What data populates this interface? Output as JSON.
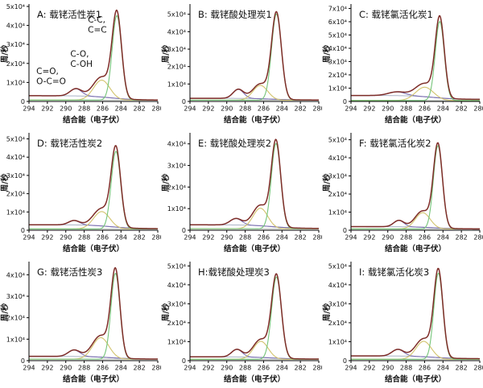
{
  "figure_title": "XPS C1s spectra grid",
  "chart_data": {
    "type": "line",
    "subtype": "xps-fitted-spectra",
    "xlabel": "结合能（电子伏）",
    "ylabel": "周/秒",
    "x_range": [
      294,
      280
    ],
    "x_ticks": [
      "294",
      "292",
      "290",
      "288",
      "286",
      "284",
      "282",
      "280"
    ],
    "y_unit": "x10⁴",
    "grid": false,
    "legend_position": "none",
    "colors": {
      "envelope": "#7e2d28",
      "main_peak": "#74c479",
      "co_peak": "#d2c36c",
      "carbonyl_peak": "#7b6fb2",
      "background_line": "#aab3c6",
      "baseline": "#bcc3bc",
      "axis": "#000000"
    },
    "bg_edge": 285.0,
    "bg_width": 1.3,
    "baseline_level": 0.07,
    "panels": [
      {
        "label": "A",
        "title": "A: 载铑活性炭1",
        "y_ticks": [
          "0",
          "1x10⁴",
          "2x10⁴",
          "3x10⁴",
          "4x10⁴",
          "5x10⁴"
        ],
        "ylim": 5.0,
        "peak_max": 4.8,
        "background": {
          "left": 0.3,
          "right": 0.07
        },
        "components": [
          {
            "assignment": "C-C/C=C",
            "center": 284.45,
            "height": 4.45,
            "fwhm": 1.2,
            "color_key": "main_peak"
          },
          {
            "assignment": "C-O/C-OH",
            "center": 286.1,
            "height": 1.05,
            "fwhm": 2.1,
            "color_key": "co_peak"
          },
          {
            "assignment": "C=O/O-C=O",
            "center": 288.9,
            "height": 0.38,
            "fwhm": 1.5,
            "color_key": "carbonyl_peak"
          }
        ],
        "annotations": [
          {
            "lines": [
              "C-C,",
              "C=C"
            ],
            "be": 287.6,
            "value": 4.15
          },
          {
            "lines": [
              "C-O,",
              "C-OH"
            ],
            "be": 289.5,
            "value": 2.35
          },
          {
            "lines": [
              "C=O,",
              "O-C=O"
            ],
            "be": 293.2,
            "value": 1.45
          }
        ]
      },
      {
        "label": "B",
        "title": "B: 载铑酸处理炭1",
        "y_ticks": [
          "0",
          "1x10⁴",
          "2x10⁴",
          "3x10⁴",
          "4x10⁴",
          "5x10⁴"
        ],
        "ylim": 5.45,
        "peak_max": 5.15,
        "background": {
          "left": 0.18,
          "right": 0.08
        },
        "components": [
          {
            "assignment": "C-C/C=C",
            "center": 284.6,
            "height": 4.95,
            "fwhm": 1.25,
            "color_key": "main_peak"
          },
          {
            "assignment": "C-O/C-OH",
            "center": 286.35,
            "height": 0.85,
            "fwhm": 1.9,
            "color_key": "co_peak"
          },
          {
            "assignment": "C=O/O-C=O",
            "center": 288.75,
            "height": 0.52,
            "fwhm": 1.35,
            "color_key": "carbonyl_peak"
          }
        ],
        "annotations": []
      },
      {
        "label": "C",
        "title": "C: 载铑氯活化炭1",
        "y_ticks": [
          "0",
          "1x10⁴",
          "2x10⁴",
          "3x10⁴",
          "4x10⁴",
          "5x10⁴",
          "6x10⁴",
          "7x10⁴"
        ],
        "ylim": 7.15,
        "peak_max": 6.5,
        "background": {
          "left": 0.45,
          "right": 0.15
        },
        "components": [
          {
            "assignment": "C-C/C=C",
            "center": 284.35,
            "height": 5.95,
            "fwhm": 1.15,
            "color_key": "main_peak"
          },
          {
            "assignment": "C-O/C-OH",
            "center": 286.0,
            "height": 1.0,
            "fwhm": 2.3,
            "color_key": "co_peak"
          },
          {
            "assignment": "C=O/O-C=O",
            "center": 289.0,
            "height": 0.28,
            "fwhm": 2.2,
            "color_key": "carbonyl_peak"
          }
        ],
        "annotations": []
      },
      {
        "label": "D",
        "title": "D: 载铑活性炭2",
        "y_ticks": [
          "0",
          "1x10⁴",
          "2x10⁴",
          "3x10⁴",
          "4x10⁴",
          "5x10⁴"
        ],
        "ylim": 5.2,
        "peak_max": 4.7,
        "background": {
          "left": 0.3,
          "right": 0.08
        },
        "components": [
          {
            "assignment": "C-C/C=C",
            "center": 284.55,
            "height": 4.25,
            "fwhm": 1.2,
            "color_key": "main_peak"
          },
          {
            "assignment": "C-O/C-OH",
            "center": 286.1,
            "height": 0.95,
            "fwhm": 2.1,
            "color_key": "co_peak"
          },
          {
            "assignment": "C=O/O-C=O",
            "center": 289.1,
            "height": 0.24,
            "fwhm": 1.4,
            "color_key": "carbonyl_peak"
          }
        ],
        "annotations": []
      },
      {
        "label": "E",
        "title": "E: 载铑酸处理炭2",
        "y_ticks": [
          "0",
          "1x10⁴",
          "2x10⁴",
          "3x10⁴",
          "4x10⁴"
        ],
        "ylim": 4.4,
        "peak_max": 4.2,
        "background": {
          "left": 0.25,
          "right": 0.08
        },
        "components": [
          {
            "assignment": "C-C/C=C",
            "center": 284.65,
            "height": 3.95,
            "fwhm": 1.2,
            "color_key": "main_peak"
          },
          {
            "assignment": "C-O/C-OH",
            "center": 286.35,
            "height": 0.95,
            "fwhm": 1.9,
            "color_key": "co_peak"
          },
          {
            "assignment": "C=O/O-C=O",
            "center": 289.0,
            "height": 0.3,
            "fwhm": 1.5,
            "color_key": "carbonyl_peak"
          }
        ],
        "annotations": []
      },
      {
        "label": "F",
        "title": "F: 载铑氯活化炭2",
        "y_ticks": [
          "0",
          "1x10⁴",
          "2x10⁴",
          "3x10⁴",
          "4x10⁴",
          "5x10⁴"
        ],
        "ylim": 5.25,
        "peak_max": 4.9,
        "background": {
          "left": 0.2,
          "right": 0.07
        },
        "components": [
          {
            "assignment": "C-C/C=C",
            "center": 284.55,
            "height": 4.6,
            "fwhm": 1.15,
            "color_key": "main_peak"
          },
          {
            "assignment": "C-O/C-OH",
            "center": 286.2,
            "height": 0.9,
            "fwhm": 1.9,
            "color_key": "co_peak"
          },
          {
            "assignment": "C=O/O-C=O",
            "center": 288.8,
            "height": 0.35,
            "fwhm": 1.3,
            "color_key": "carbonyl_peak"
          }
        ],
        "annotations": []
      },
      {
        "label": "G",
        "title": "G: 载铑活性炭3",
        "y_ticks": [
          "0",
          "1x10⁴",
          "2x10⁴",
          "3x10⁴",
          "4x10⁴"
        ],
        "ylim": 4.5,
        "peak_max": 4.3,
        "background": {
          "left": 0.2,
          "right": 0.07
        },
        "components": [
          {
            "assignment": "C-C/C=C",
            "center": 284.6,
            "height": 4.0,
            "fwhm": 1.15,
            "color_key": "main_peak"
          },
          {
            "assignment": "C-O/C-OH",
            "center": 286.2,
            "height": 1.0,
            "fwhm": 2.1,
            "color_key": "co_peak"
          },
          {
            "assignment": "C=O/O-C=O",
            "center": 289.1,
            "height": 0.3,
            "fwhm": 1.5,
            "color_key": "carbonyl_peak"
          }
        ],
        "annotations": []
      },
      {
        "label": "H",
        "title": "H:载铑酸处理炭3",
        "y_ticks": [
          "0",
          "1x10⁴",
          "2x10⁴",
          "3x10⁴",
          "4x10⁴",
          "5x10⁴"
        ],
        "ylim": 5.1,
        "peak_max": 4.65,
        "background": {
          "left": 0.2,
          "right": 0.08
        },
        "components": [
          {
            "assignment": "C-C/C=C",
            "center": 284.6,
            "height": 4.35,
            "fwhm": 1.25,
            "color_key": "main_peak"
          },
          {
            "assignment": "C-O/C-OH",
            "center": 286.3,
            "height": 0.95,
            "fwhm": 1.9,
            "color_key": "co_peak"
          },
          {
            "assignment": "C=O/O-C=O",
            "center": 288.9,
            "height": 0.4,
            "fwhm": 1.35,
            "color_key": "carbonyl_peak"
          }
        ],
        "annotations": []
      },
      {
        "label": "I",
        "title": "I: 载铑氯活化炭3",
        "y_ticks": [
          "0",
          "1x10⁴",
          "2x10⁴",
          "3x10⁴",
          "4x10⁴",
          "5x10⁴"
        ],
        "ylim": 5.1,
        "peak_max": 4.9,
        "background": {
          "left": 0.25,
          "right": 0.1
        },
        "components": [
          {
            "assignment": "C-C/C=C",
            "center": 284.5,
            "height": 4.55,
            "fwhm": 1.15,
            "color_key": "main_peak"
          },
          {
            "assignment": "C-O/C-OH",
            "center": 286.1,
            "height": 0.95,
            "fwhm": 2.0,
            "color_key": "co_peak"
          },
          {
            "assignment": "C=O/O-C=O",
            "center": 288.9,
            "height": 0.35,
            "fwhm": 1.5,
            "color_key": "carbonyl_peak"
          }
        ],
        "annotations": []
      }
    ]
  }
}
